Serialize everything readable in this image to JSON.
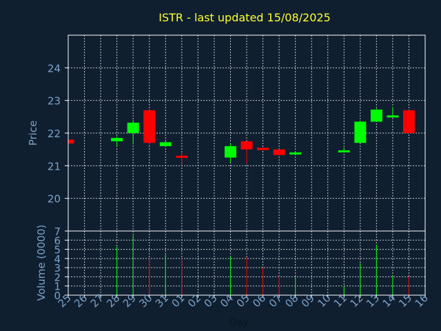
{
  "chart_data": {
    "type": "candlestick",
    "title": "ISTR - last updated 15/08/2025",
    "xlabel": "Day",
    "days": [
      "25",
      "26",
      "27",
      "28",
      "29",
      "30",
      "31",
      "01",
      "02",
      "03",
      "04",
      "05",
      "06",
      "07",
      "08",
      "09",
      "10",
      "11",
      "12",
      "13",
      "14",
      "15",
      "16"
    ],
    "price_panel": {
      "ylabel": "Price",
      "ylim": [
        19.0,
        25.0
      ],
      "yticks": [
        20,
        21,
        22,
        23,
        24
      ],
      "candles": [
        {
          "day": "25",
          "open": 21.8,
          "high": 21.8,
          "low": 21.68,
          "close": 21.68
        },
        {
          "day": "28",
          "open": 21.75,
          "high": 21.9,
          "low": 21.6,
          "close": 21.85
        },
        {
          "day": "29",
          "open": 22.0,
          "high": 22.4,
          "low": 21.65,
          "close": 22.32
        },
        {
          "day": "30",
          "open": 22.7,
          "high": 22.7,
          "low": 21.62,
          "close": 21.7
        },
        {
          "day": "31",
          "open": 21.6,
          "high": 21.75,
          "low": 21.6,
          "close": 21.72
        },
        {
          "day": "01",
          "open": 21.3,
          "high": 21.42,
          "low": 21.02,
          "close": 21.25
        },
        {
          "day": "04",
          "open": 21.25,
          "high": 21.7,
          "low": 21.1,
          "close": 21.6
        },
        {
          "day": "05",
          "open": 21.75,
          "high": 21.75,
          "low": 21.08,
          "close": 21.5
        },
        {
          "day": "06",
          "open": 21.55,
          "high": 21.55,
          "low": 21.48,
          "close": 21.48
        },
        {
          "day": "07",
          "open": 21.5,
          "high": 21.5,
          "low": 21.3,
          "close": 21.33
        },
        {
          "day": "08",
          "open": 21.35,
          "high": 21.45,
          "low": 21.35,
          "close": 21.4
        },
        {
          "day": "11",
          "open": 21.43,
          "high": 21.55,
          "low": 21.43,
          "close": 21.45
        },
        {
          "day": "12",
          "open": 21.7,
          "high": 22.38,
          "low": 21.7,
          "close": 22.35
        },
        {
          "day": "13",
          "open": 22.35,
          "high": 22.75,
          "low": 22.35,
          "close": 22.72
        },
        {
          "day": "14",
          "open": 22.5,
          "high": 22.8,
          "low": 22.48,
          "close": 22.52
        },
        {
          "day": "15",
          "open": 22.7,
          "high": 22.7,
          "low": 22.0,
          "close": 22.0
        }
      ]
    },
    "volume_panel": {
      "ylabel": "Volume (0000)",
      "ylim": [
        0,
        7
      ],
      "yticks": [
        0,
        1,
        2,
        3,
        4,
        5,
        6,
        7
      ],
      "bars": [
        {
          "day": "28",
          "value": 5.3,
          "direction": "up"
        },
        {
          "day": "29",
          "value": 6.5,
          "direction": "up"
        },
        {
          "day": "30",
          "value": 4.0,
          "direction": "down"
        },
        {
          "day": "31",
          "value": 4.6,
          "direction": "up"
        },
        {
          "day": "01",
          "value": 4.0,
          "direction": "down"
        },
        {
          "day": "04",
          "value": 4.2,
          "direction": "up"
        },
        {
          "day": "05",
          "value": 4.1,
          "direction": "down"
        },
        {
          "day": "06",
          "value": 3.0,
          "direction": "down"
        },
        {
          "day": "07",
          "value": 2.1,
          "direction": "down"
        },
        {
          "day": "08",
          "value": 2.0,
          "direction": "up"
        },
        {
          "day": "11",
          "value": 1.0,
          "direction": "up"
        },
        {
          "day": "12",
          "value": 3.5,
          "direction": "up"
        },
        {
          "day": "13",
          "value": 5.5,
          "direction": "up"
        },
        {
          "day": "14",
          "value": 2.1,
          "direction": "up"
        },
        {
          "day": "15",
          "value": 2.0,
          "direction": "down"
        }
      ]
    },
    "grid": true,
    "colors": {
      "background": "#0f1f30",
      "plot_background": "#0f1f30",
      "up": "#00ff00",
      "down": "#ff0000",
      "title": "#ffff33",
      "axis_text": "#7ea2c8",
      "grid": "#c8c8c8",
      "frame": "#ffffff"
    }
  }
}
